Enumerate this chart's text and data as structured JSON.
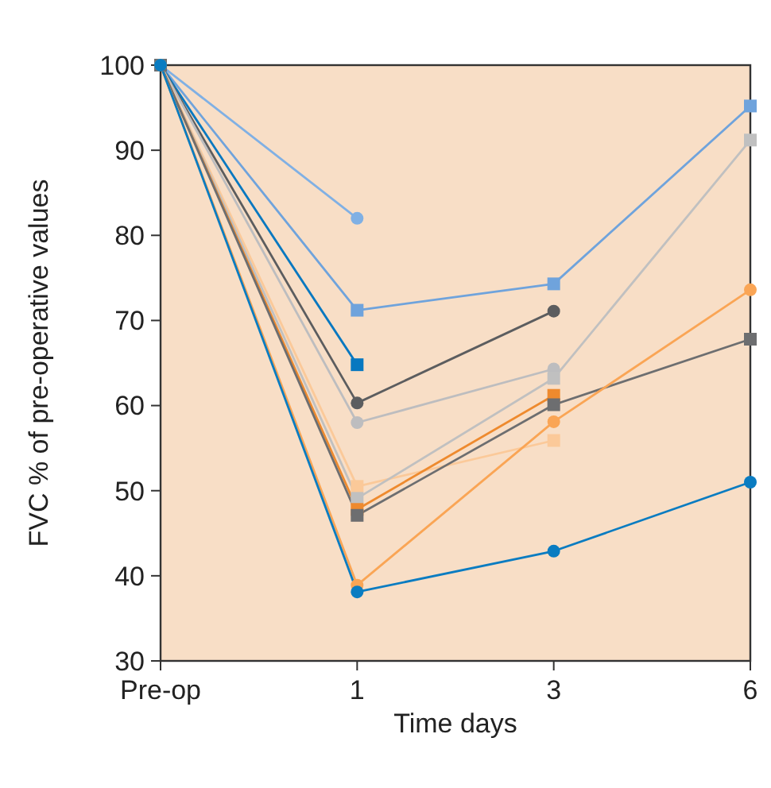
{
  "chart_data": {
    "type": "line",
    "xlabel": "Time days",
    "ylabel": "FVC % of pre-operative values",
    "categories": [
      "Pre-op",
      "1",
      "3",
      "6"
    ],
    "ylim": [
      30,
      100
    ],
    "yticks": [
      30,
      40,
      50,
      60,
      70,
      80,
      90,
      100
    ],
    "grid": false,
    "line_style": "solid",
    "series": [
      {
        "color": "#80b0e4",
        "marker": "circle",
        "values": [
          100,
          82,
          null,
          null
        ]
      },
      {
        "color": "#6fa3dc",
        "marker": "square",
        "values": [
          100,
          71.2,
          74.3,
          95.2
        ]
      },
      {
        "color": "#0878c0",
        "marker": "square",
        "values": [
          100,
          64.8,
          null,
          null
        ]
      },
      {
        "color": "#5c5d5f",
        "marker": "circle",
        "values": [
          100,
          60.3,
          71.1,
          null
        ]
      },
      {
        "color": "#bdbdbf",
        "marker": "circle",
        "values": [
          100,
          58,
          64.3,
          null
        ]
      },
      {
        "color": "#fbc999",
        "marker": "square",
        "values": [
          100,
          50.5,
          55.9,
          null
        ]
      },
      {
        "color": "#c0c0c0",
        "marker": "square",
        "values": [
          100,
          49.1,
          63.2,
          91.2
        ]
      },
      {
        "color": "#ee8a2e",
        "marker": "square",
        "values": [
          100,
          47.8,
          61.2,
          null
        ]
      },
      {
        "color": "#6d6e70",
        "marker": "square",
        "values": [
          100,
          47.1,
          60.1,
          67.8
        ]
      },
      {
        "color": "#faa555",
        "marker": "circle",
        "values": [
          100,
          38.9,
          58.1,
          73.6
        ]
      },
      {
        "color": "#0a7cc1",
        "marker": "circle",
        "values": [
          100,
          38.1,
          42.9,
          51
        ]
      }
    ]
  }
}
